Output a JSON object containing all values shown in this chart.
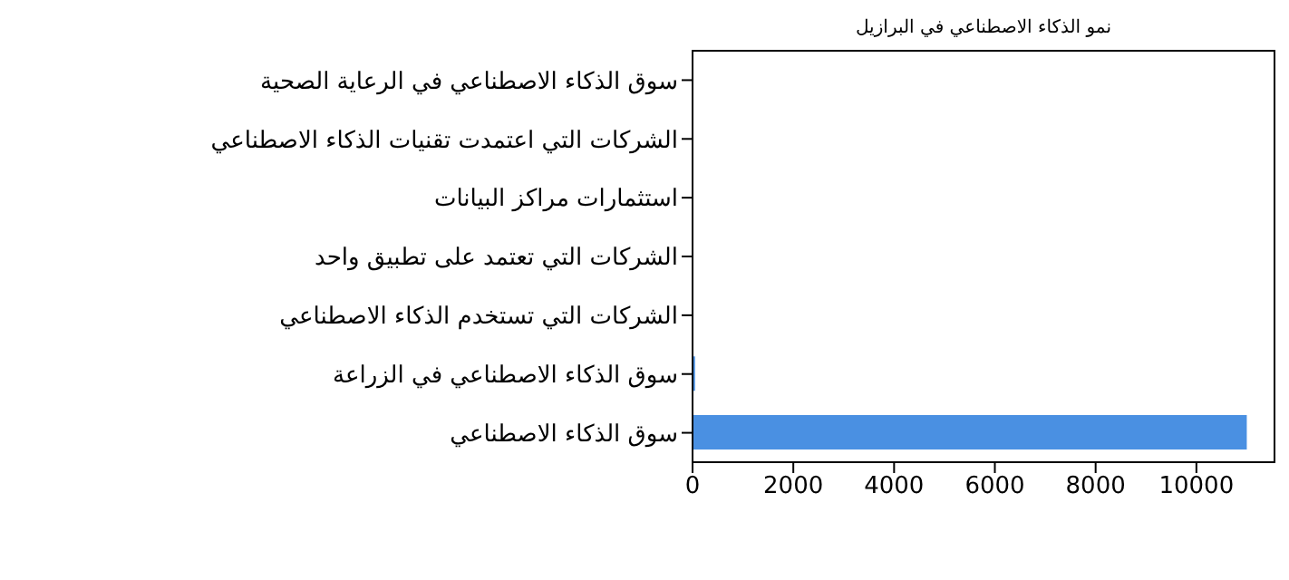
{
  "chart_data": {
    "type": "bar",
    "orientation": "horizontal",
    "title": "نمو الذكاء الاصطناعي في البرازيل",
    "categories": [
      "سوق الذكاء الاصطناعي في الرعاية الصحية",
      "الشركات التي اعتمدت تقنيات الذكاء الاصطناعي",
      "استثمارات مراكز البيانات",
      "الشركات التي تعتمد على تطبيق واحد",
      "الشركات التي تستخدم الذكاء الاصطناعي",
      "سوق الذكاء الاصطناعي في الزراعة",
      "سوق الذكاء الاصطناعي"
    ],
    "values": [
      0,
      0,
      0,
      0,
      0,
      50,
      11000
    ],
    "color": "#4a90e2",
    "xlim": [
      0,
      11550
    ],
    "xticks": [
      0,
      2000,
      4000,
      6000,
      8000,
      10000
    ],
    "grid": false,
    "legend": false
  }
}
